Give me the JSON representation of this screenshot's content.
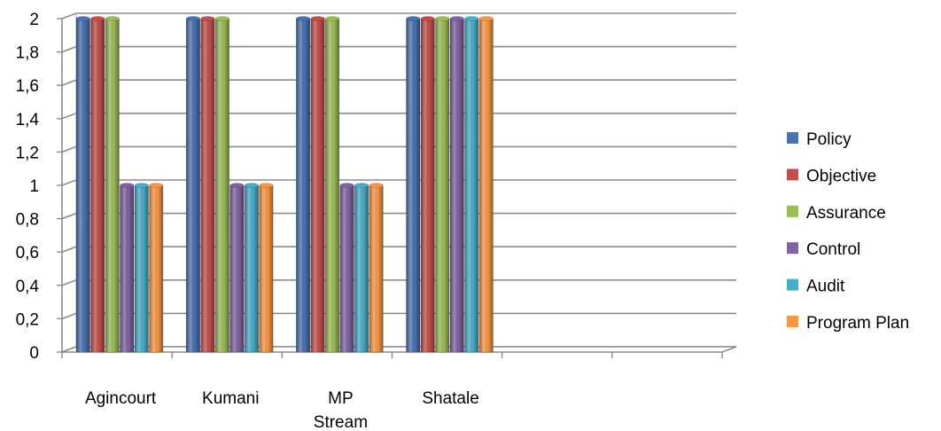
{
  "chart_data": {
    "type": "bar",
    "style": "3d-clustered-column",
    "categories": [
      "Agincourt",
      "Kumani",
      "MP Stream",
      "Shatale",
      "",
      ""
    ],
    "category_display_lines": [
      [
        "Agincourt"
      ],
      [
        "Kumani"
      ],
      [
        "MP",
        "Stream"
      ],
      [
        "Shatale"
      ],
      [
        ""
      ],
      [
        ""
      ]
    ],
    "series": [
      {
        "name": "Policy",
        "color": "#4a72b0",
        "values": [
          2,
          2,
          2,
          2,
          null,
          null
        ]
      },
      {
        "name": "Objective",
        "color": "#c0504d",
        "values": [
          2,
          2,
          2,
          2,
          null,
          null
        ]
      },
      {
        "name": "Assurance",
        "color": "#9bbb59",
        "values": [
          2,
          2,
          2,
          2,
          null,
          null
        ]
      },
      {
        "name": "Control",
        "color": "#8064a2",
        "values": [
          1,
          1,
          1,
          2,
          null,
          null
        ]
      },
      {
        "name": "Audit",
        "color": "#4bacc6",
        "values": [
          1,
          1,
          1,
          2,
          null,
          null
        ]
      },
      {
        "name": "Program Plan",
        "color": "#f79646",
        "values": [
          1,
          1,
          1,
          2,
          null,
          null
        ]
      }
    ],
    "y_ticks": [
      "0",
      "0,2",
      "0,4",
      "0,6",
      "0,8",
      "1",
      "1,2",
      "1,4",
      "1,6",
      "1,8",
      "2"
    ],
    "ylim": [
      0,
      2
    ],
    "grid": true,
    "legend_position": "right"
  }
}
